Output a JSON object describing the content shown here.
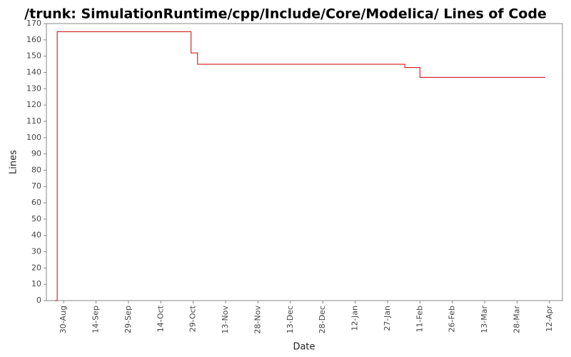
{
  "chart_data": {
    "type": "step",
    "title": "/trunk: SimulationRuntime/cpp/Include/Core/Modelica/ Lines of Code",
    "xlabel": "Date",
    "ylabel": "Lines",
    "x": [
      "26-Aug",
      "27-Aug",
      "28-Oct",
      "31-Oct",
      "4-Feb",
      "11-Feb",
      "10-Apr"
    ],
    "values": [
      0,
      165,
      152,
      145,
      143,
      137,
      137
    ],
    "color": "#cc0000",
    "xlim": [
      "22-Aug",
      "18-Apr"
    ],
    "xticks": [
      "30-Aug",
      "14-Sep",
      "29-Sep",
      "14-Oct",
      "29-Oct",
      "13-Nov",
      "28-Nov",
      "13-Dec",
      "28-Dec",
      "12-Jan",
      "27-Jan",
      "11-Feb",
      "26-Feb",
      "13-Mar",
      "28-Mar",
      "12-Apr"
    ],
    "ylim": [
      0,
      170
    ],
    "yticks": [
      0,
      10,
      20,
      30,
      40,
      50,
      60,
      70,
      80,
      90,
      100,
      110,
      120,
      130,
      140,
      150,
      160,
      170
    ]
  }
}
